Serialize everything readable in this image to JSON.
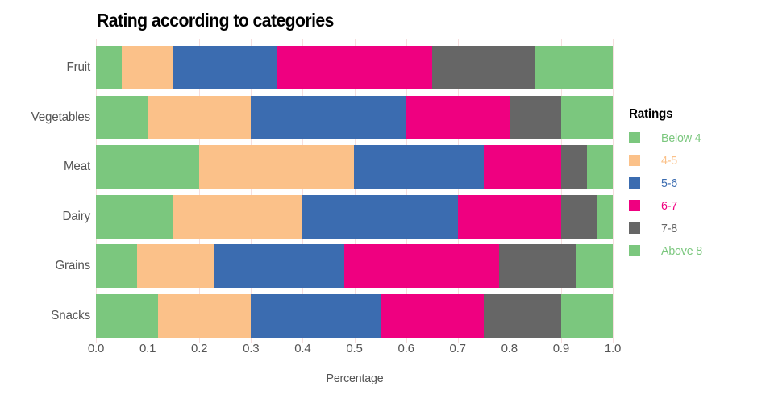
{
  "chart_data": {
    "type": "bar",
    "orientation": "horizontal",
    "stacked": true,
    "title": "Rating according to categories",
    "xlabel": "Percentage",
    "ylabel": "",
    "xlim": [
      0,
      1
    ],
    "grid": true,
    "x_ticks": [
      "0.0",
      "0.1",
      "0.2",
      "0.3",
      "0.4",
      "0.5",
      "0.6",
      "0.7",
      "0.8",
      "0.9",
      "1.0"
    ],
    "categories": [
      "Fruit",
      "Vegetables",
      "Meat",
      "Dairy",
      "Grains",
      "Snacks"
    ],
    "series": [
      {
        "name": "Below 4",
        "color": "#7bc77e",
        "values": [
          0.05,
          0.1,
          0.2,
          0.15,
          0.08,
          0.12
        ]
      },
      {
        "name": "4-5",
        "color": "#fbc189",
        "values": [
          0.1,
          0.2,
          0.3,
          0.25,
          0.15,
          0.18
        ]
      },
      {
        "name": "5-6",
        "color": "#3b6cb0",
        "values": [
          0.2,
          0.3,
          0.25,
          0.3,
          0.25,
          0.25
        ]
      },
      {
        "name": "6-7",
        "color": "#ef0080",
        "values": [
          0.3,
          0.2,
          0.15,
          0.2,
          0.3,
          0.2
        ]
      },
      {
        "name": "7-8",
        "color": "#666666",
        "values": [
          0.2,
          0.1,
          0.05,
          0.07,
          0.15,
          0.15
        ]
      },
      {
        "name": "Above 8",
        "color": "#7bc77e",
        "values": [
          0.15,
          0.1,
          0.05,
          0.03,
          0.07,
          0.1
        ]
      }
    ],
    "legend": {
      "title": "Ratings",
      "position": "right"
    },
    "colors": {
      "axis_text": "#555555",
      "gridline": "#f6dede",
      "title_text": "#000000"
    }
  }
}
